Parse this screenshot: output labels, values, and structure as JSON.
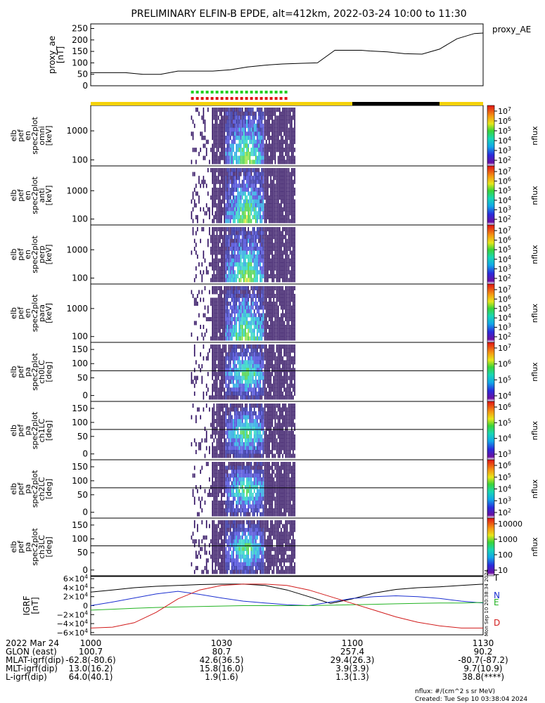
{
  "title": "PRELIMINARY ELFIN-B EPDE, alt=412km, 2022-03-24 10:00 to 11:30",
  "chart_data": [
    {
      "type": "line",
      "name": "proxy_ae",
      "ylabel": [
        "proxy_ae",
        "[nT]"
      ],
      "legend": "proxy_AE",
      "yticks": [
        "250",
        "200",
        "150",
        "100",
        "50",
        "0"
      ],
      "ytick_values": [
        250,
        200,
        150,
        100,
        50,
        0
      ],
      "ylim": [
        0,
        270
      ],
      "xlim_minutes": [
        0,
        90
      ],
      "x_minutes": [
        0,
        4,
        8,
        12,
        16,
        20,
        24,
        28,
        32,
        36,
        40,
        44,
        48,
        52,
        56,
        60,
        62,
        64,
        68,
        72,
        76,
        80,
        84,
        88,
        90
      ],
      "values": [
        57,
        57,
        57,
        50,
        50,
        64,
        64,
        64,
        70,
        82,
        90,
        95,
        98,
        100,
        155,
        155,
        155,
        152,
        148,
        140,
        138,
        160,
        205,
        228,
        230
      ]
    },
    {
      "type": "heatmap",
      "name": "elb_pef_en_spec2plot_omni",
      "ylabel": [
        "elb",
        "pef",
        "en",
        "spec2plot",
        "omni",
        "[keV]"
      ],
      "yticks": [
        "1000",
        "100"
      ],
      "colorbar_label": "nflux",
      "colorbar_ticks": [
        "10^7",
        "10^6",
        "10^5",
        "10^4",
        "10^3",
        "10^2"
      ],
      "data_window_minutes": [
        23,
        47
      ]
    },
    {
      "type": "heatmap",
      "name": "elb_pef_en_spec2plot_anti",
      "ylabel": [
        "elb",
        "pef",
        "en",
        "spec2plot",
        "anti",
        "[keV]"
      ],
      "yticks": [
        "1000",
        "100"
      ],
      "colorbar_label": "nflux",
      "colorbar_ticks": [
        "10^7",
        "10^6",
        "10^5",
        "10^4",
        "10^3",
        "10^2"
      ],
      "data_window_minutes": [
        23,
        47
      ]
    },
    {
      "type": "heatmap",
      "name": "elb_pef_en_spec2plot_perp",
      "ylabel": [
        "elb",
        "pef",
        "en",
        "spec2plot",
        "perp",
        "[keV]"
      ],
      "yticks": [
        "1000",
        "100"
      ],
      "colorbar_label": "nflux",
      "colorbar_ticks": [
        "10^7",
        "10^6",
        "10^5",
        "10^4",
        "10^3",
        "10^2"
      ],
      "data_window_minutes": [
        23,
        47
      ]
    },
    {
      "type": "heatmap",
      "name": "elb_pef_en_spec2plot_para",
      "ylabel": [
        "elb",
        "pef",
        "en",
        "spec2plot",
        "para",
        "[keV]"
      ],
      "yticks": [
        "1000",
        "100"
      ],
      "colorbar_label": "nflux",
      "colorbar_ticks": [
        "10^7",
        "10^6",
        "10^5",
        "10^4",
        "10^3",
        "10^2"
      ],
      "data_window_minutes": [
        23,
        47
      ]
    },
    {
      "type": "heatmap",
      "name": "elb_pef_pa_spec2plot_ch0LC",
      "ylabel": [
        "elb",
        "pef",
        "pa",
        "spec2plot",
        "ch0LC",
        "[deg]"
      ],
      "yticks": [
        "150",
        "100",
        "50",
        "0"
      ],
      "colorbar_label": "nflux",
      "colorbar_ticks": [
        "10^7",
        "10^6",
        "10^5",
        "10^4"
      ],
      "data_window_minutes": [
        23,
        47
      ]
    },
    {
      "type": "heatmap",
      "name": "elb_pef_pa_spec2plot_ch1LC",
      "ylabel": [
        "elb",
        "pef",
        "pa",
        "spec2plot",
        "ch1LC",
        "[deg]"
      ],
      "yticks": [
        "150",
        "100",
        "50",
        "0"
      ],
      "colorbar_label": "nflux",
      "colorbar_ticks": [
        "10^6",
        "10^5",
        "10^4",
        "10^3"
      ],
      "data_window_minutes": [
        23,
        47
      ]
    },
    {
      "type": "heatmap",
      "name": "elb_pef_pa_spec2plot_ch2LC",
      "ylabel": [
        "elb",
        "pef",
        "pa",
        "spec2plot",
        "ch2LC",
        "[deg]"
      ],
      "yticks": [
        "150",
        "100",
        "50",
        "0"
      ],
      "colorbar_label": "nflux",
      "colorbar_ticks": [
        "10^6",
        "10^5",
        "10^4",
        "10^3",
        "10^2"
      ],
      "data_window_minutes": [
        23,
        47
      ]
    },
    {
      "type": "heatmap",
      "name": "elb_pef_pa_spec2plot_ch3LC",
      "ylabel": [
        "elb",
        "pef",
        "pa",
        "spec2plot",
        "ch3LC",
        "[deg]"
      ],
      "yticks": [
        "150",
        "100",
        "50",
        "0"
      ],
      "colorbar_label": "nflux",
      "colorbar_ticks": [
        "10000",
        "1000",
        "100",
        "10"
      ],
      "data_window_minutes": [
        23,
        47
      ]
    },
    {
      "type": "line",
      "name": "IGRF",
      "ylabel": [
        "IGRF",
        "[nT]"
      ],
      "yticks": [
        "6×10^4",
        "4×10^4",
        "2×10^4",
        "0",
        "−2×10^4",
        "−4×10^4",
        "−6×10^4"
      ],
      "ytick_values": [
        60000,
        40000,
        20000,
        0,
        -20000,
        -40000,
        -60000
      ],
      "ylim": [
        -65000,
        65000
      ],
      "x_minutes": [
        0,
        5,
        10,
        15,
        20,
        25,
        30,
        35,
        40,
        45,
        50,
        55,
        60,
        65,
        70,
        75,
        80,
        85,
        90
      ],
      "series": [
        {
          "name": "T",
          "color": "#000000",
          "values": [
            30000,
            35000,
            40000,
            43000,
            45000,
            47000,
            48000,
            48000,
            45000,
            35000,
            20000,
            5000,
            15000,
            28000,
            36000,
            40000,
            42000,
            45000,
            48000
          ]
        },
        {
          "name": "N",
          "color": "#1b2fd0",
          "values": [
            0,
            8000,
            17000,
            26000,
            32000,
            25000,
            17000,
            10000,
            6000,
            2000,
            0,
            8000,
            16000,
            20000,
            22000,
            20000,
            16000,
            10000,
            6000
          ]
        },
        {
          "name": "E",
          "color": "#22b322",
          "values": [
            -10000,
            -8000,
            -6000,
            -4000,
            -3000,
            -2000,
            -1000,
            0,
            0,
            0,
            0,
            1000,
            2000,
            3000,
            4000,
            5000,
            6000,
            6000,
            7000
          ]
        },
        {
          "name": "D",
          "color": "#d11a1a",
          "values": [
            -50000,
            -48000,
            -38000,
            -15000,
            15000,
            35000,
            45000,
            48000,
            48000,
            45000,
            35000,
            20000,
            5000,
            -10000,
            -25000,
            -37000,
            -45000,
            -50000,
            -50000
          ]
        }
      ]
    }
  ],
  "sensor_bars": {
    "green_window_minutes": [
      23,
      45
    ],
    "red_window_minutes": [
      23,
      45
    ],
    "status_segments": [
      {
        "from": 0,
        "to": 60,
        "color": "#f5d20b"
      },
      {
        "from": 60,
        "to": 80,
        "color": "#000000"
      },
      {
        "from": 80,
        "to": 90,
        "color": "#f5d20b"
      }
    ]
  },
  "xaxis": {
    "date_label": "2022 Mar 24",
    "ticks": [
      "1000",
      "1030",
      "1100",
      "1130"
    ],
    "rows": [
      {
        "label": "GLON (east)",
        "values": [
          "100.7",
          "80.7",
          "257.4",
          "90.2"
        ]
      },
      {
        "label": "MLAT-igrf(dip)",
        "values": [
          "-62.8(-80.6)",
          "42.6(36.5)",
          "29.4(26.3)",
          "-80.7(-87.2)"
        ]
      },
      {
        "label": "MLT-igrf(dip)",
        "values": [
          "13.0(16.2)",
          "15.8(16.0)",
          "3.9(3.9)",
          "9.7(10.9)"
        ]
      },
      {
        "label": "L-igrf(dip)",
        "values": [
          "64.0(40.1)",
          "1.9(1.6)",
          "1.3(1.3)",
          "38.8(****)"
        ]
      }
    ]
  },
  "footer": {
    "units": "nflux: #/(cm^2 s sr MeV)",
    "created": "Created: Tue Sep 10 03:38:04 2024",
    "side_stamp": "Mon Sep 10 20:38:34 2024"
  }
}
